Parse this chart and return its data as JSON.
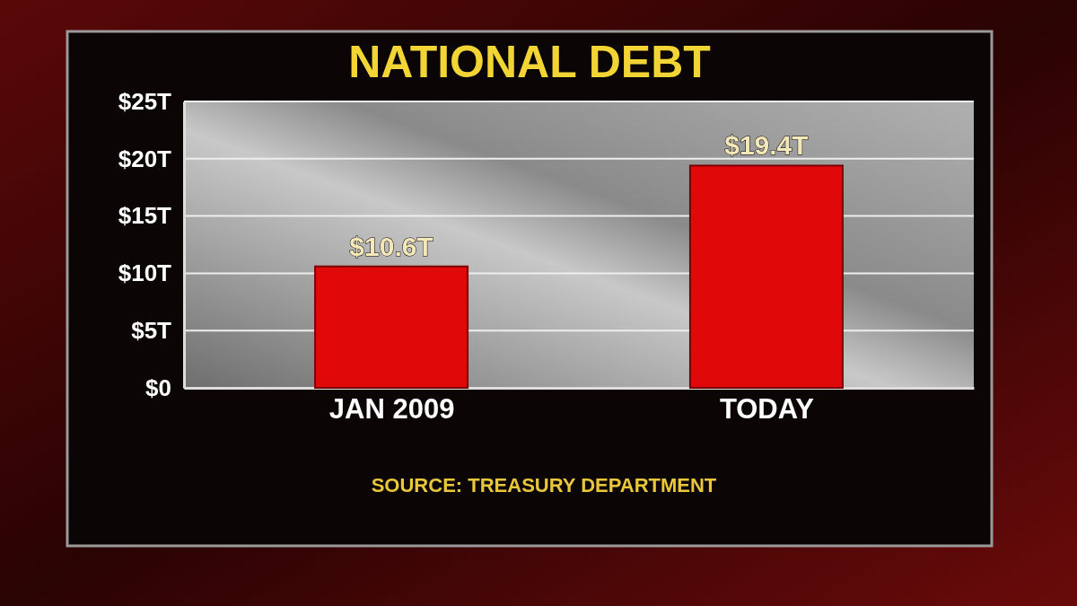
{
  "chart_data": {
    "type": "bar",
    "title": "NATIONAL DEBT",
    "categories": [
      "JAN 2009",
      "TODAY"
    ],
    "values": [
      10.6,
      19.4
    ],
    "color": "#e00808",
    "value_labels": [
      "$10.6T",
      "$19.4T"
    ],
    "ylim": [
      0,
      25
    ],
    "yticks": [
      {
        "value": 0,
        "label": "$0"
      },
      {
        "value": 5,
        "label": "$5T"
      },
      {
        "value": 10,
        "label": "$10T"
      },
      {
        "value": 15,
        "label": "$15T"
      },
      {
        "value": 20,
        "label": "$20T"
      },
      {
        "value": 25,
        "label": "$25T"
      }
    ],
    "grid": "y",
    "annotations": [
      "SOURCE: TREASURY DEPARTMENT"
    ]
  }
}
